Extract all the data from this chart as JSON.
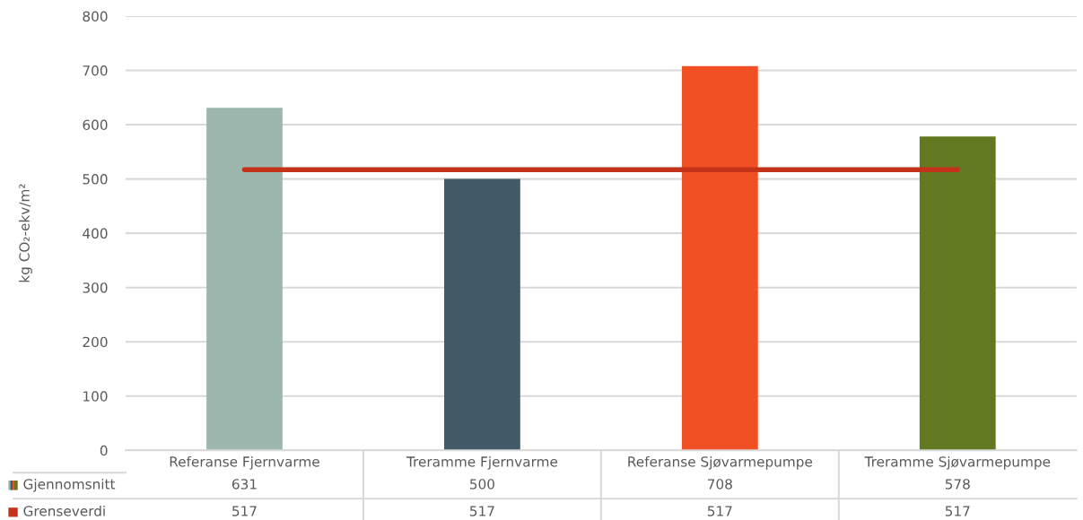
{
  "chart_data": {
    "type": "bar",
    "ylabel": "kg CO₂-ekv/m²",
    "categories": [
      "Referanse Fjernvarme",
      "Treramme Fjernvarme",
      "Referanse Sjøvarmepumpe",
      "Treramme Sjøvarmepumpe"
    ],
    "series": [
      {
        "name": "Gjennomsnitt",
        "colors": [
          "#9db7ae",
          "#425a68",
          "#f05023",
          "#627821"
        ],
        "values": [
          631,
          500,
          708,
          578
        ]
      },
      {
        "name": "Grenseverdi",
        "type": "line",
        "color": "#c4321a",
        "values": [
          517,
          517,
          517,
          517
        ]
      }
    ],
    "ylim": [
      0,
      800
    ],
    "yticks": [
      0,
      100,
      200,
      300,
      400,
      500,
      600,
      700,
      800
    ],
    "grid": "y",
    "data_labels": true,
    "legend": "bottom left"
  }
}
